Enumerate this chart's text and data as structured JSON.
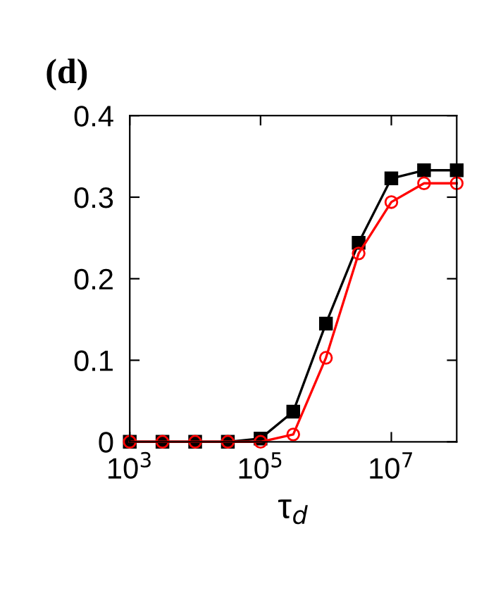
{
  "chart_data": {
    "type": "line",
    "title": "(d)",
    "xlabel": "τ$_{d}$",
    "log": "x",
    "x": [
      1000,
      3162,
      10000,
      31623,
      100000,
      316228,
      1000000,
      3162278,
      10000000,
      31622777,
      100000000
    ],
    "series": [
      {
        "color": "#000000",
        "marker": "square",
        "values": [
          0,
          0,
          0,
          0,
          0.004,
          0.037,
          0.145,
          0.244,
          0.323,
          0.333,
          0.333
        ]
      },
      {
        "color": "#ff0000",
        "marker": "circle",
        "values": [
          0,
          0,
          0,
          0,
          0,
          0.009,
          0.103,
          0.231,
          0.294,
          0.317,
          0.317
        ]
      }
    ],
    "xlim": [
      1000,
      100000000
    ],
    "xticks": [
      {
        "value": 1000,
        "label": "10$^{3}$"
      },
      {
        "value": 100000,
        "label": "10$^{5}$"
      },
      {
        "value": 10000000,
        "label": "10$^{7}$"
      }
    ],
    "ylim": [
      0,
      0.4
    ],
    "yticks": [
      0,
      0.1,
      0.2,
      0.3,
      0.4
    ],
    "grid": false,
    "legend": false
  }
}
